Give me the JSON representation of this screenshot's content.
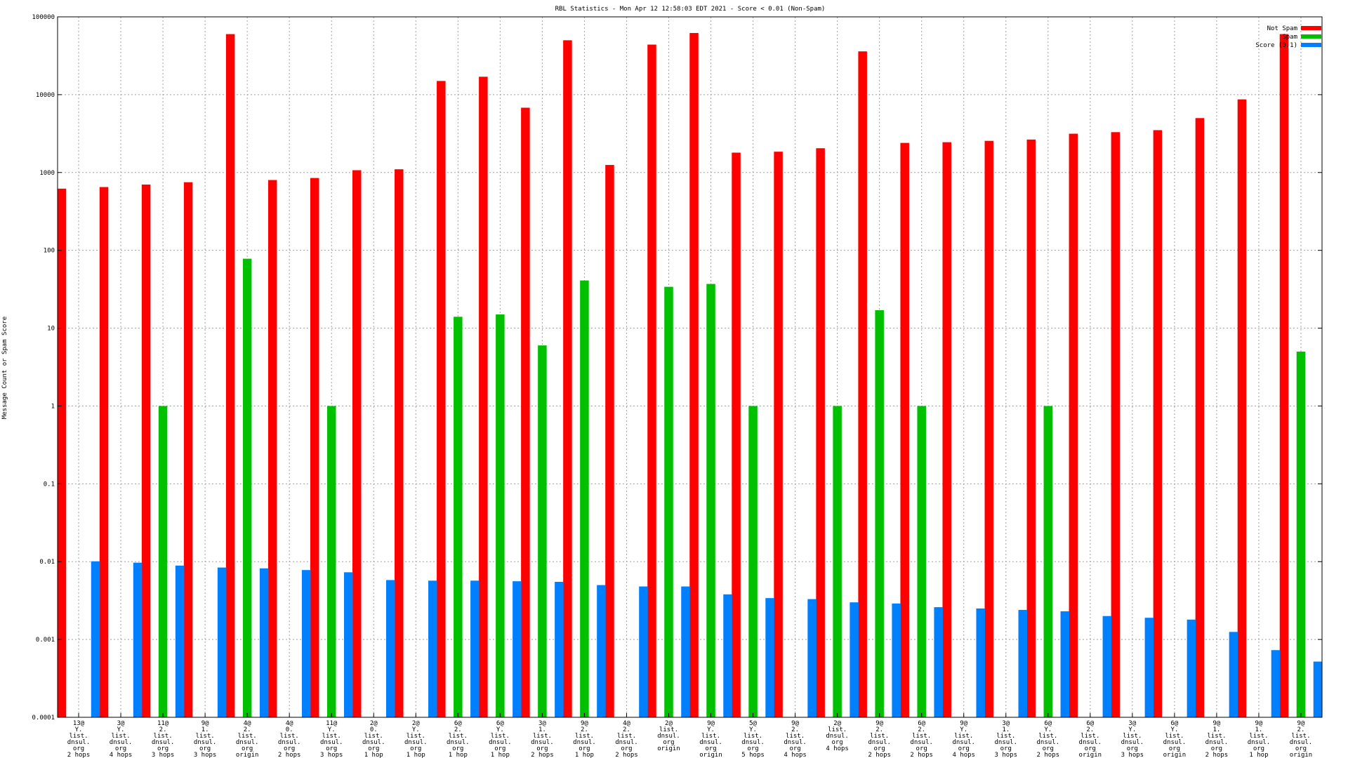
{
  "chart_data": {
    "type": "bar",
    "title": "RBL Statistics - Mon Apr 12 12:58:03 EDT 2021 - Score < 0.01 (Non-Spam)",
    "ylabel": "Message Count or Spam Score",
    "yscale": "log",
    "ylim": [
      0.0001,
      100000
    ],
    "yticks": [
      {
        "value": 0.0001,
        "label": "0.0001"
      },
      {
        "value": 0.001,
        "label": "0.001"
      },
      {
        "value": 0.01,
        "label": "0.01"
      },
      {
        "value": 0.1,
        "label": "0.1"
      },
      {
        "value": 1,
        "label": "1"
      },
      {
        "value": 10,
        "label": "10"
      },
      {
        "value": 100,
        "label": "100"
      },
      {
        "value": 1000,
        "label": "1000"
      },
      {
        "value": 10000,
        "label": "10000"
      },
      {
        "value": 100000,
        "label": "100000"
      }
    ],
    "grid": true,
    "legend": "top-right",
    "categories": [
      [
        "13@",
        "Y.",
        "list.",
        "dnsul.",
        "org",
        "2 hops"
      ],
      [
        "3@",
        "Y.",
        "list.",
        "dnsul.",
        "org",
        "4 hops"
      ],
      [
        "11@",
        "2.",
        "list.",
        "dnsul.",
        "org",
        "3 hops"
      ],
      [
        "9@",
        "1.",
        "list.",
        "dnsul.",
        "org",
        "3 hops"
      ],
      [
        "4@",
        "2.",
        "list.",
        "dnsul.",
        "org",
        "origin"
      ],
      [
        "4@",
        "0.",
        "list.",
        "dnsul.",
        "org",
        "2 hops"
      ],
      [
        "11@",
        "Y.",
        "list.",
        "dnsul.",
        "org",
        "3 hops"
      ],
      [
        "2@",
        "0.",
        "list.",
        "dnsul.",
        "org",
        "1 hop"
      ],
      [
        "2@",
        "Y.",
        "list.",
        "dnsul.",
        "org",
        "1 hop"
      ],
      [
        "6@",
        "2.",
        "list.",
        "dnsul.",
        "org",
        "1 hop"
      ],
      [
        "6@",
        "Y.",
        "list.",
        "dnsul.",
        "org",
        "1 hop"
      ],
      [
        "3@",
        "1.",
        "list.",
        "dnsul.",
        "org",
        "2 hops"
      ],
      [
        "9@",
        "2.",
        "list.",
        "dnsul.",
        "org",
        "1 hop"
      ],
      [
        "4@",
        "2.",
        "list.",
        "dnsul.",
        "org",
        "2 hops"
      ],
      [
        "2@",
        "list.",
        "dnsul.",
        "org",
        "origin"
      ],
      [
        "9@",
        "Y.",
        "list.",
        "dnsul.",
        "org",
        "origin"
      ],
      [
        "5@",
        "Y.",
        "list.",
        "dnsul.",
        "org",
        "5 hops"
      ],
      [
        "9@",
        "2.",
        "list.",
        "dnsul.",
        "org",
        "4 hops"
      ],
      [
        "2@",
        "list.",
        "dnsul.",
        "org",
        "4 hops"
      ],
      [
        "9@",
        "2.",
        "list.",
        "dnsul.",
        "org",
        "2 hops"
      ],
      [
        "6@",
        "2.",
        "list.",
        "dnsul.",
        "org",
        "2 hops"
      ],
      [
        "9@",
        "Y.",
        "list.",
        "dnsul.",
        "org",
        "4 hops"
      ],
      [
        "3@",
        "1.",
        "list.",
        "dnsul.",
        "org",
        "3 hops"
      ],
      [
        "6@",
        "Y.",
        "list.",
        "dnsul.",
        "org",
        "2 hops"
      ],
      [
        "6@",
        "2.",
        "list.",
        "dnsul.",
        "org",
        "origin"
      ],
      [
        "3@",
        "Y.",
        "list.",
        "dnsul.",
        "org",
        "3 hops"
      ],
      [
        "6@",
        "Y.",
        "list.",
        "dnsul.",
        "org",
        "origin"
      ],
      [
        "9@",
        "1.",
        "list.",
        "dnsul.",
        "org",
        "2 hops"
      ],
      [
        "9@",
        "1.",
        "list.",
        "dnsul.",
        "org",
        "1 hop"
      ],
      [
        "9@",
        "2.",
        "list.",
        "dnsul.",
        "org",
        "origin"
      ]
    ],
    "series": [
      {
        "name": "Not Spam",
        "color": "#ff0000",
        "values": [
          620,
          650,
          700,
          750,
          60000,
          800,
          850,
          1070,
          1100,
          15000,
          17000,
          6800,
          50000,
          1250,
          44000,
          62000,
          1800,
          1850,
          2050,
          36000,
          2400,
          2450,
          2550,
          2650,
          3150,
          3300,
          3500,
          5000,
          8700,
          60000
        ]
      },
      {
        "name": "Spam",
        "color": "#00c000",
        "values": [
          null,
          null,
          1,
          null,
          78,
          null,
          1,
          null,
          null,
          14,
          15,
          6,
          41,
          null,
          34,
          37,
          1,
          null,
          1,
          17,
          1,
          null,
          null,
          1,
          null,
          null,
          null,
          null,
          null,
          5
        ]
      },
      {
        "name": "Score (0.1)",
        "color": "#0080ff",
        "values": [
          0.0101,
          0.0097,
          0.0089,
          0.0084,
          0.0082,
          0.0078,
          0.0073,
          0.0058,
          0.0057,
          0.0057,
          0.0056,
          0.0055,
          0.005,
          0.0048,
          0.0048,
          0.0038,
          0.0034,
          0.0033,
          0.003,
          0.0029,
          0.0026,
          0.0025,
          0.0024,
          0.0023,
          0.002,
          0.0019,
          0.0018,
          0.00125,
          0.00073,
          0.00052
        ]
      }
    ]
  }
}
